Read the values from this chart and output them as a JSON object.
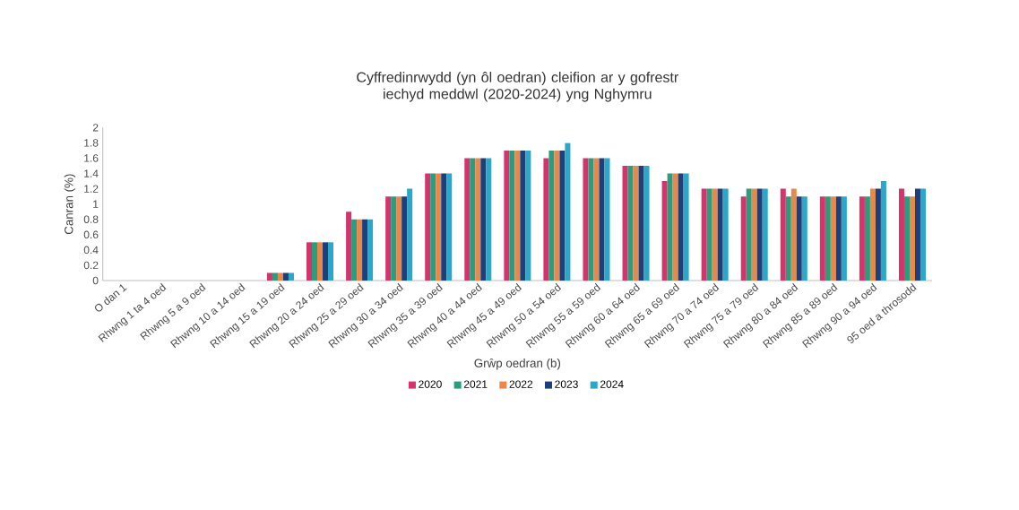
{
  "chart_data": {
    "type": "bar",
    "title": "Cyffredinrwydd (yn ôl oedran) cleifion ar y gofrestr iechyd meddwl (2020-2024) yng Nghymru",
    "xlabel": "Grŵp oedran (b)",
    "ylabel": "Canran (%)",
    "categories": [
      "O dan 1",
      "Rhwng 1 ta 4 oed",
      "Rhwng 5 a 9 oed",
      "Rhwng 10 a 14 oed",
      "Rhwng 15 a 19 oed",
      "Rhwng 20 a 24 oed",
      "Rhwng 25 a 29 oed",
      "Rhwng 30 a 34 oed",
      "Rhwng 35 a 39 oed",
      "Rhwng 40 a 44 oed",
      "Rhwng 45 a 49 oed",
      "Rhwng 50 a 54 oed",
      "Rhwng 55 a 59 oed",
      "Rhwng 60 a 64 oed",
      "Rhwng 65 a 69 oed",
      "Rhwng 70 a 74 oed",
      "Rhwng 75 a 79 oed",
      "Rhwng 80 a 84 oed",
      "Rhwng 85 a 89 oed",
      "Rhwng 90 a 94 oed",
      "95 oed a throsodd"
    ],
    "series": [
      {
        "name": "2020",
        "color": "#d6336c",
        "values": [
          0,
          0,
          0,
          0,
          0.1,
          0.5,
          0.9,
          1.1,
          1.4,
          1.6,
          1.7,
          1.6,
          1.6,
          1.5,
          1.3,
          1.2,
          1.1,
          1.2,
          1.1,
          1.1,
          1.2
        ]
      },
      {
        "name": "2021",
        "color": "#2a9d7f",
        "values": [
          0,
          0,
          0,
          0,
          0.1,
          0.5,
          0.8,
          1.1,
          1.4,
          1.6,
          1.7,
          1.7,
          1.6,
          1.5,
          1.4,
          1.2,
          1.2,
          1.1,
          1.1,
          1.1,
          1.1
        ]
      },
      {
        "name": "2022",
        "color": "#e8894a",
        "values": [
          0,
          0,
          0,
          0,
          0.1,
          0.5,
          0.8,
          1.1,
          1.4,
          1.6,
          1.7,
          1.7,
          1.6,
          1.5,
          1.4,
          1.2,
          1.2,
          1.2,
          1.1,
          1.2,
          1.1
        ]
      },
      {
        "name": "2023",
        "color": "#1f3f7a",
        "values": [
          0,
          0,
          0,
          0,
          0.1,
          0.5,
          0.8,
          1.1,
          1.4,
          1.6,
          1.7,
          1.7,
          1.6,
          1.5,
          1.4,
          1.2,
          1.2,
          1.1,
          1.1,
          1.2,
          1.2
        ]
      },
      {
        "name": "2024",
        "color": "#2aa7c9",
        "values": [
          0,
          0,
          0,
          0,
          0.1,
          0.5,
          0.8,
          1.2,
          1.4,
          1.6,
          1.7,
          1.8,
          1.6,
          1.5,
          1.4,
          1.2,
          1.2,
          1.1,
          1.1,
          1.3,
          1.2
        ]
      }
    ],
    "ylim": [
      0,
      2
    ],
    "yticks": [
      0,
      0.2,
      0.4,
      0.6,
      0.8,
      1,
      1.2,
      1.4,
      1.6,
      1.8,
      2
    ],
    "grid": false,
    "legend": "bottom"
  }
}
